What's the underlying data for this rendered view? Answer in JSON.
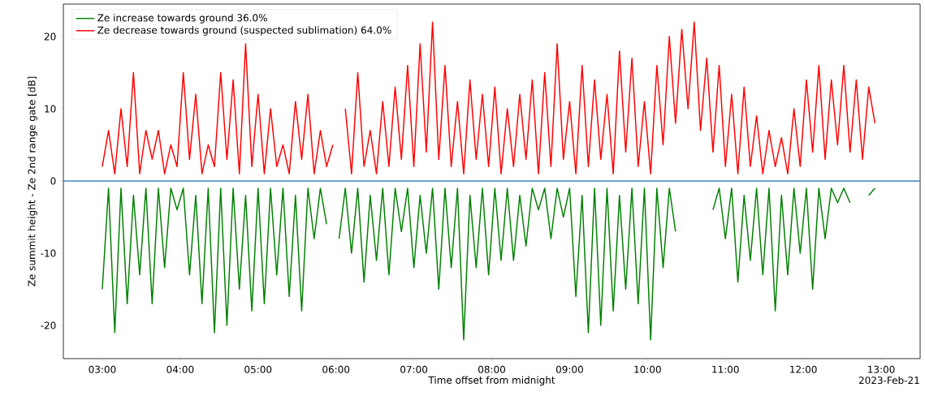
{
  "chart_data": {
    "type": "line",
    "xlabel": "Time offset from midnight",
    "ylabel": "Ze summit height - Ze 2nd range gate [dB]",
    "annotations": [
      "2023-Feb-21"
    ],
    "x": [
      3.0,
      3.08,
      3.16,
      3.24,
      3.32,
      3.4,
      3.48,
      3.56,
      3.64,
      3.72,
      3.8,
      3.88,
      3.96,
      4.04,
      4.12,
      4.2,
      4.28,
      4.36,
      4.44,
      4.52,
      4.6,
      4.68,
      4.76,
      4.84,
      4.92,
      5.0,
      5.08,
      5.16,
      5.24,
      5.32,
      5.4,
      5.48,
      5.56,
      5.64,
      5.72,
      5.8,
      5.88,
      5.96,
      6.04,
      6.12,
      6.2,
      6.28,
      6.36,
      6.44,
      6.52,
      6.6,
      6.68,
      6.76,
      6.84,
      6.92,
      7.0,
      7.08,
      7.16,
      7.24,
      7.32,
      7.4,
      7.48,
      7.56,
      7.64,
      7.72,
      7.8,
      7.88,
      7.96,
      8.04,
      8.12,
      8.2,
      8.28,
      8.36,
      8.44,
      8.52,
      8.6,
      8.68,
      8.76,
      8.84,
      8.92,
      9.0,
      9.08,
      9.16,
      9.24,
      9.32,
      9.4,
      9.48,
      9.56,
      9.64,
      9.72,
      9.8,
      9.88,
      9.96,
      10.04,
      10.12,
      10.2,
      10.28,
      10.36,
      10.44,
      10.52,
      10.6,
      10.68,
      10.76,
      10.84,
      10.92,
      11.0,
      11.08,
      11.16,
      11.24,
      11.32,
      11.4,
      11.48,
      11.56,
      11.64,
      11.72,
      11.8,
      11.88,
      11.96,
      12.04,
      12.12,
      12.2,
      12.28,
      12.36,
      12.44,
      12.52,
      12.6,
      12.68,
      12.76,
      12.84,
      12.92
    ],
    "series": [
      {
        "name": "Ze increase towards ground 36.0%",
        "color": "#008000",
        "values": [
          -15,
          -1,
          -21,
          -1,
          -17,
          -2,
          -13,
          -1,
          -17,
          -1,
          -12,
          -1,
          -4,
          -1,
          -13,
          -2,
          -17,
          -1,
          -21,
          -1,
          -20,
          -1,
          -15,
          -2,
          -18,
          -1,
          -17,
          -1,
          -13,
          -1,
          -16,
          -2,
          -18,
          -1,
          -8,
          -1,
          -6,
          null,
          -8,
          -1,
          -10,
          -1,
          -14,
          -2,
          -11,
          -1,
          -13,
          -1,
          -7,
          -1,
          -12,
          -2,
          -10,
          -1,
          -15,
          -1,
          -12,
          -1,
          -22,
          -2,
          -12,
          -1,
          -13,
          -1,
          -11,
          -1,
          -11,
          -2,
          -9,
          -1,
          -4,
          -1,
          -8,
          -1,
          -5,
          -1,
          -16,
          -2,
          -21,
          -1,
          -20,
          -1,
          -18,
          -2,
          -15,
          -1,
          -17,
          -1,
          -22,
          -1,
          -12,
          -1,
          -7,
          null,
          null,
          null,
          null,
          null,
          -4,
          -1,
          -8,
          -1,
          -14,
          -2,
          -11,
          -1,
          -13,
          -1,
          -18,
          -2,
          -13,
          -1,
          -10,
          -1,
          -15,
          -1,
          -8,
          -1,
          -3,
          -1,
          -3,
          null,
          null,
          -2,
          -1
        ]
      },
      {
        "name": "Ze decrease towards ground (suspected sublimation) 64.0%",
        "color": "#ff0000",
        "values": [
          2,
          7,
          1,
          10,
          2,
          15,
          1,
          7,
          3,
          7,
          1,
          5,
          2,
          15,
          3,
          12,
          1,
          5,
          2,
          15,
          3,
          14,
          1,
          19,
          2,
          12,
          1,
          10,
          2,
          5,
          1,
          11,
          3,
          12,
          1,
          7,
          2,
          5,
          null,
          10,
          1,
          15,
          2,
          7,
          1,
          11,
          2,
          13,
          3,
          16,
          2,
          19,
          4,
          22,
          3,
          16,
          2,
          11,
          1,
          14,
          3,
          12,
          2,
          13,
          1,
          10,
          2,
          12,
          3,
          14,
          1,
          15,
          2,
          19,
          3,
          11,
          1,
          16,
          2,
          14,
          3,
          12,
          1,
          18,
          4,
          17,
          2,
          11,
          1,
          16,
          5,
          20,
          8,
          21,
          10,
          22,
          7,
          17,
          4,
          16,
          2,
          12,
          1,
          13,
          2,
          9,
          1,
          7,
          2,
          6,
          1,
          10,
          2,
          14,
          4,
          16,
          3,
          14,
          5,
          16,
          4,
          14,
          3,
          13,
          8
        ]
      }
    ],
    "xlim": [
      2.5,
      13.5
    ],
    "ylim": [
      -24.6,
      24.5
    ],
    "xticks": [
      {
        "value": 3,
        "label": "03:00"
      },
      {
        "value": 4,
        "label": "04:00"
      },
      {
        "value": 5,
        "label": "05:00"
      },
      {
        "value": 6,
        "label": "06:00"
      },
      {
        "value": 7,
        "label": "07:00"
      },
      {
        "value": 8,
        "label": "08:00"
      },
      {
        "value": 9,
        "label": "09:00"
      },
      {
        "value": 10,
        "label": "10:00"
      },
      {
        "value": 11,
        "label": "11:00"
      },
      {
        "value": 12,
        "label": "12:00"
      },
      {
        "value": 13,
        "label": "13:00"
      }
    ],
    "yticks": [
      -20,
      -10,
      0,
      10,
      20
    ],
    "ref_lines": [
      {
        "axis": "y",
        "value": 0,
        "color": "#1f77b4"
      }
    ],
    "legend": "top left",
    "line_style": "solid"
  }
}
